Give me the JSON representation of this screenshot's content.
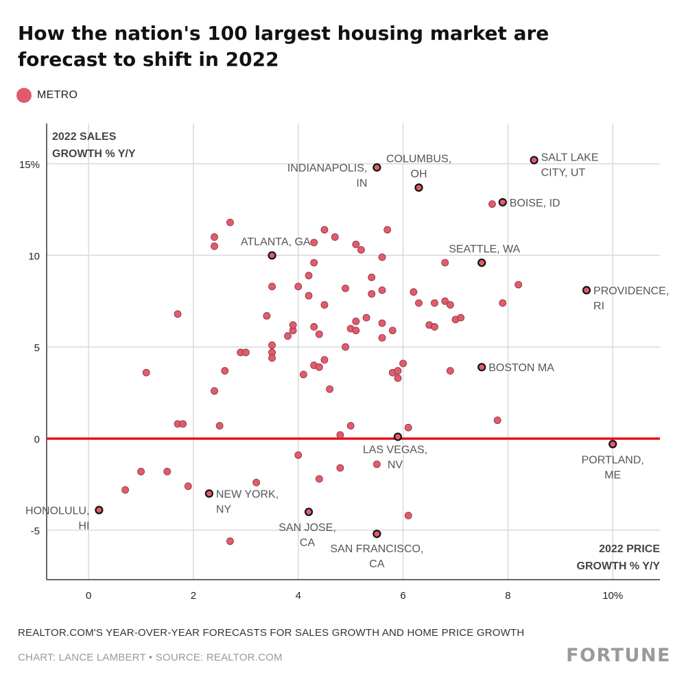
{
  "header": {
    "title_line1": "How the nation's 100 largest housing market are",
    "title_line2": "forecast to shift in 2022"
  },
  "legend": {
    "label": "METRO",
    "color": "#e05c6c"
  },
  "footer": {
    "note": "REALTOR.COM'S YEAR-OVER-YEAR FORECASTS FOR SALES GROWTH AND HOME PRICE GROWTH",
    "credit": "CHART: LANCE LAMBERT • SOURCE: REALTOR.COM",
    "brand": "FORTUNE"
  },
  "colors": {
    "point": "#e05c6c",
    "zero_line": "#e8101a",
    "grid": "#d9d9d9",
    "axis": "#333333"
  },
  "chart_data": {
    "type": "scatter",
    "xlabel_lines": [
      "2022 PRICE",
      "GROWTH % Y/Y"
    ],
    "ylabel_lines": [
      "2022 SALES",
      "GROWTH % Y/Y"
    ],
    "xlim": [
      -0.8,
      10.9
    ],
    "ylim": [
      -7.7,
      17.2
    ],
    "x_ticks": [
      {
        "v": 0,
        "label": "0"
      },
      {
        "v": 2,
        "label": "2"
      },
      {
        "v": 4,
        "label": "4"
      },
      {
        "v": 6,
        "label": "6"
      },
      {
        "v": 8,
        "label": "8"
      },
      {
        "v": 10,
        "label": "10%"
      }
    ],
    "y_ticks": [
      {
        "v": 15,
        "label": "15%"
      },
      {
        "v": 10,
        "label": "10"
      },
      {
        "v": 5,
        "label": "5"
      },
      {
        "v": 0,
        "label": "0"
      },
      {
        "v": -5,
        "label": "-5"
      }
    ],
    "grid": true,
    "zero_line": true,
    "series": [
      {
        "values": [
          [
            1.7,
            6.8
          ],
          [
            1.1,
            3.6
          ],
          [
            1.7,
            0.8
          ],
          [
            1.8,
            0.8
          ],
          [
            2.4,
            11.0
          ],
          [
            2.4,
            10.5
          ],
          [
            2.7,
            11.8
          ],
          [
            2.4,
            2.6
          ],
          [
            2.6,
            3.7
          ],
          [
            2.5,
            0.7
          ],
          [
            2.9,
            4.7
          ],
          [
            3.0,
            4.7
          ],
          [
            3.5,
            8.3
          ],
          [
            3.5,
            5.1
          ],
          [
            3.5,
            4.7
          ],
          [
            3.5,
            4.4
          ],
          [
            3.4,
            6.7
          ],
          [
            3.8,
            5.6
          ],
          [
            3.9,
            5.9
          ],
          [
            3.9,
            6.2
          ],
          [
            4.0,
            8.3
          ],
          [
            4.2,
            8.9
          ],
          [
            4.3,
            10.7
          ],
          [
            4.5,
            11.4
          ],
          [
            4.7,
            11.0
          ],
          [
            4.3,
            9.6
          ],
          [
            4.2,
            7.8
          ],
          [
            4.5,
            7.3
          ],
          [
            4.3,
            6.1
          ],
          [
            4.4,
            5.7
          ],
          [
            4.1,
            3.5
          ],
          [
            4.3,
            4.0
          ],
          [
            4.4,
            3.9
          ],
          [
            4.5,
            4.3
          ],
          [
            4.6,
            2.7
          ],
          [
            4.9,
            8.2
          ],
          [
            5.1,
            10.6
          ],
          [
            5.2,
            10.3
          ],
          [
            5.0,
            6.0
          ],
          [
            5.1,
            6.4
          ],
          [
            5.1,
            5.9
          ],
          [
            5.3,
            6.6
          ],
          [
            4.9,
            5.0
          ],
          [
            5.4,
            8.8
          ],
          [
            5.4,
            7.9
          ],
          [
            5.6,
            8.1
          ],
          [
            5.6,
            9.9
          ],
          [
            5.7,
            11.4
          ],
          [
            5.6,
            6.3
          ],
          [
            5.6,
            5.5
          ],
          [
            5.8,
            5.9
          ],
          [
            5.8,
            3.6
          ],
          [
            5.9,
            3.7
          ],
          [
            5.9,
            3.3
          ],
          [
            6.0,
            4.1
          ],
          [
            6.2,
            8.0
          ],
          [
            6.3,
            7.4
          ],
          [
            6.5,
            6.2
          ],
          [
            6.6,
            6.1
          ],
          [
            6.6,
            7.4
          ],
          [
            6.8,
            7.5
          ],
          [
            6.9,
            7.3
          ],
          [
            7.0,
            6.5
          ],
          [
            7.1,
            6.6
          ],
          [
            6.8,
            9.6
          ],
          [
            6.9,
            3.7
          ],
          [
            7.7,
            12.8
          ],
          [
            7.9,
            7.4
          ],
          [
            8.2,
            8.4
          ],
          [
            7.8,
            1.0
          ],
          [
            6.1,
            0.6
          ],
          [
            5.0,
            0.7
          ],
          [
            4.8,
            0.2
          ],
          [
            4.0,
            -0.9
          ],
          [
            4.8,
            -1.6
          ],
          [
            4.4,
            -2.2
          ],
          [
            3.2,
            -2.4
          ],
          [
            1.9,
            -2.6
          ],
          [
            1.5,
            -1.8
          ],
          [
            1.0,
            -1.8
          ],
          [
            0.7,
            -2.8
          ],
          [
            2.7,
            -5.6
          ],
          [
            5.5,
            -1.4
          ],
          [
            6.1,
            -4.2
          ]
        ]
      }
    ],
    "highlighted": [
      {
        "name": "INDIANAPOLIS, IN",
        "label_lines": [
          "INDIANAPOLIS,",
          "IN"
        ],
        "x": 5.5,
        "y": 14.8
      },
      {
        "name": "COLUMBUS, OH",
        "label_lines": [
          "COLUMBUS,",
          "OH"
        ],
        "x": 6.3,
        "y": 13.7
      },
      {
        "name": "SALT LAKE CITY, UT",
        "label_lines": [
          "SALT LAKE",
          "CITY, UT"
        ],
        "x": 8.5,
        "y": 15.2
      },
      {
        "name": "BOISE, ID",
        "label_lines": [
          "BOISE, ID"
        ],
        "x": 7.9,
        "y": 12.9
      },
      {
        "name": "ATLANTA, GA",
        "label_lines": [
          "ATLANTA, GA"
        ],
        "x": 3.5,
        "y": 10.0
      },
      {
        "name": "SEATTLE, WA",
        "label_lines": [
          "SEATTLE, WA"
        ],
        "x": 7.5,
        "y": 9.6
      },
      {
        "name": "PROVIDENCE, RI",
        "label_lines": [
          "PROVIDENCE,",
          "RI"
        ],
        "x": 9.5,
        "y": 8.1
      },
      {
        "name": "BOSTON MA",
        "label_lines": [
          "BOSTON MA"
        ],
        "x": 7.5,
        "y": 3.9
      },
      {
        "name": "LAS VEGAS, NV",
        "label_lines": [
          "LAS VEGAS,",
          "NV"
        ],
        "x": 5.9,
        "y": 0.1
      },
      {
        "name": "PORTLAND, ME",
        "label_lines": [
          "PORTLAND,",
          "ME"
        ],
        "x": 10.0,
        "y": -0.3
      },
      {
        "name": "NEW YORK, NY",
        "label_lines": [
          "NEW YORK,",
          "NY"
        ],
        "x": 2.3,
        "y": -3.0
      },
      {
        "name": "HONOLULU, HI",
        "label_lines": [
          "HONOLULU,",
          "HI"
        ],
        "x": 0.2,
        "y": -3.9
      },
      {
        "name": "SAN JOSE, CA",
        "label_lines": [
          "SAN JOSE,",
          "CA"
        ],
        "x": 4.2,
        "y": -4.0
      },
      {
        "name": "SAN FRANCISCO, CA",
        "label_lines": [
          "SAN FRANCISCO,",
          "CA"
        ],
        "x": 5.5,
        "y": -5.2
      }
    ]
  }
}
